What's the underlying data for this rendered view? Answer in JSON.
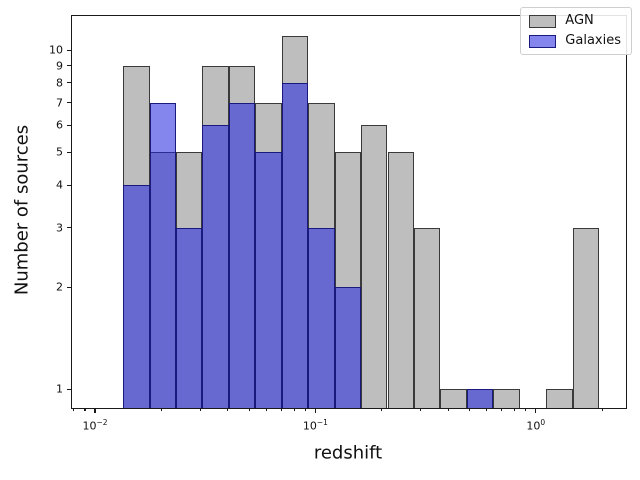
{
  "chart_data": {
    "type": "histogram",
    "title": "",
    "xlabel": "redshift",
    "ylabel": "Number of sources",
    "xscale": "log",
    "yscale": "log",
    "xlim": [
      0.00786,
      2.566
    ],
    "ylim": [
      0.881,
      12.6
    ],
    "grid": false,
    "bin_edges": [
      0.0134,
      0.0177,
      0.0233,
      0.0307,
      0.0405,
      0.0534,
      0.0703,
      0.0927,
      0.1222,
      0.1612,
      0.2124,
      0.2801,
      0.3692,
      0.4867,
      0.6416,
      0.8458,
      1.115,
      1.47,
      1.938
    ],
    "series": [
      {
        "name": "AGN",
        "fill": "#bebebe",
        "edge": "#3a3a3a",
        "values": [
          9,
          5,
          5,
          9,
          9,
          7,
          11,
          7,
          5,
          6,
          5,
          3,
          1,
          1,
          1,
          0,
          1,
          3
        ]
      },
      {
        "name": "Galaxies",
        "fill": "rgba(32,32,224,0.55)",
        "edge": "#1a1a7e",
        "values": [
          4,
          7,
          3,
          6,
          7,
          5,
          8,
          3,
          2,
          0,
          0,
          0,
          0,
          1,
          0,
          0,
          0,
          0
        ]
      }
    ],
    "x_major_ticks": [
      {
        "value": 0.01,
        "base": "10",
        "exp": "−2"
      },
      {
        "value": 0.1,
        "base": "10",
        "exp": "−1"
      },
      {
        "value": 1,
        "base": "10",
        "exp": "0"
      }
    ],
    "y_major_ticks": [
      1,
      2,
      3,
      4,
      5,
      6,
      7,
      8,
      9,
      10
    ],
    "legend": {
      "position": "upper right",
      "entries": [
        "AGN",
        "Galaxies"
      ]
    }
  }
}
